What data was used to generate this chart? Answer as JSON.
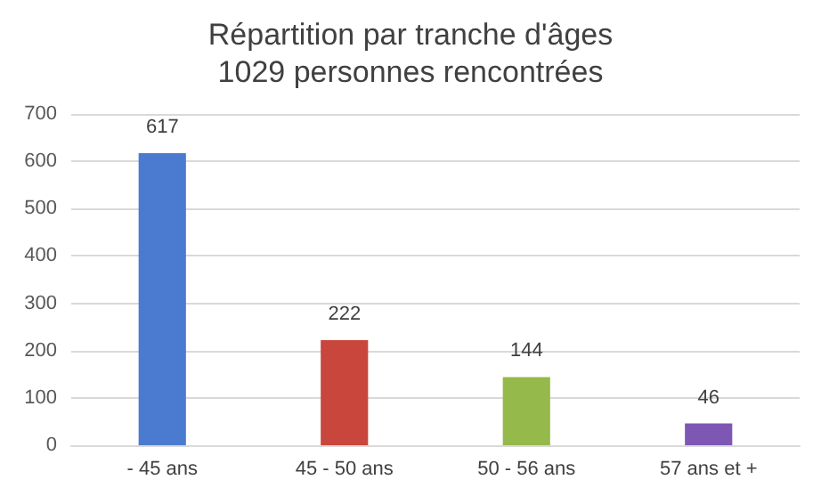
{
  "chart_data": {
    "type": "bar",
    "title": "Répartition par tranche d'âges",
    "subtitle": "1029 personnes rencontrées",
    "categories": [
      "- 45 ans",
      "45 - 50 ans",
      "50 - 56 ans",
      "57 ans et +"
    ],
    "values": [
      617,
      222,
      144,
      46
    ],
    "colors": [
      "#4a7bd0",
      "#c9463d",
      "#95b94a",
      "#7e57b4"
    ],
    "ylim": [
      0,
      700
    ],
    "yticks": [
      0,
      100,
      200,
      300,
      400,
      500,
      600,
      700
    ],
    "grid": "y",
    "data_labels": true
  }
}
